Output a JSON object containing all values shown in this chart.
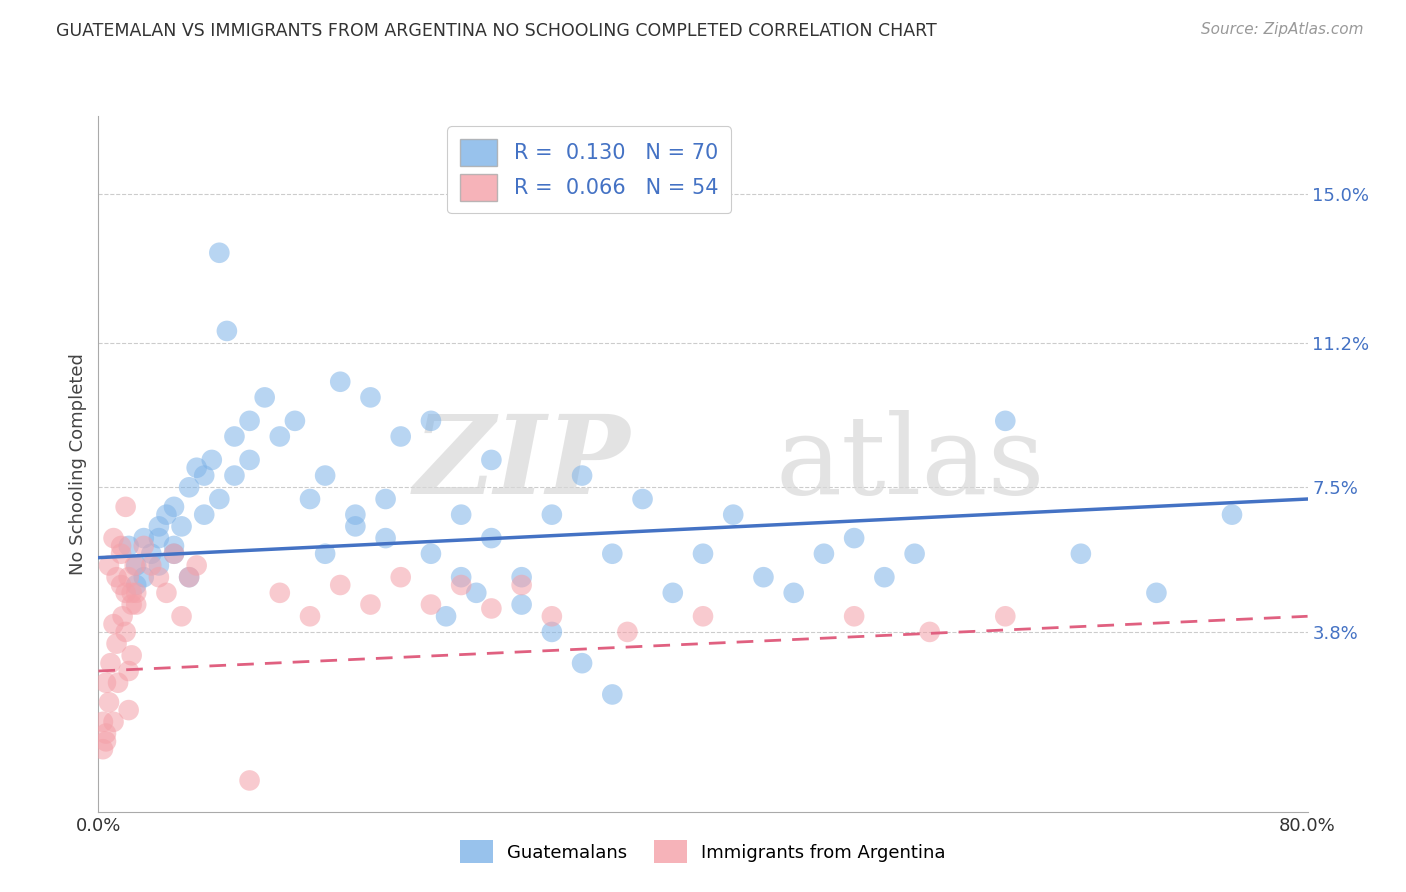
{
  "title": "GUATEMALAN VS IMMIGRANTS FROM ARGENTINA NO SCHOOLING COMPLETED CORRELATION CHART",
  "source": "Source: ZipAtlas.com",
  "ylabel": "No Schooling Completed",
  "x_min": 0.0,
  "x_max": 0.8,
  "y_min": -0.008,
  "y_max": 0.17,
  "y_ticks": [
    0.038,
    0.075,
    0.112,
    0.15
  ],
  "y_tick_labels": [
    "3.8%",
    "7.5%",
    "11.2%",
    "15.0%"
  ],
  "x_ticks": [
    0.0,
    0.8
  ],
  "x_tick_labels": [
    "0.0%",
    "80.0%"
  ],
  "legend1_label": "R =  0.130   N = 70",
  "legend2_label": "R =  0.066   N = 54",
  "legend_bottom1": "Guatemalans",
  "legend_bottom2": "Immigrants from Argentina",
  "blue_color": "#7EB3E8",
  "pink_color": "#F4A0A8",
  "blue_line_color": "#4472C4",
  "pink_line_color": "#E06080",
  "blue_line_y_start": 0.057,
  "blue_line_y_end": 0.072,
  "pink_line_y_start": 0.028,
  "pink_line_y_end": 0.042,
  "background_color": "#ffffff",
  "grid_color": "#cccccc",
  "blue_scatter_x": [
    0.02,
    0.025,
    0.03,
    0.035,
    0.04,
    0.04,
    0.045,
    0.05,
    0.05,
    0.055,
    0.06,
    0.065,
    0.07,
    0.075,
    0.08,
    0.085,
    0.09,
    0.1,
    0.1,
    0.11,
    0.12,
    0.13,
    0.14,
    0.15,
    0.16,
    0.17,
    0.18,
    0.19,
    0.2,
    0.22,
    0.24,
    0.26,
    0.28,
    0.3,
    0.32,
    0.34,
    0.36,
    0.38,
    0.4,
    0.42,
    0.44,
    0.46,
    0.48,
    0.5,
    0.52,
    0.54,
    0.22,
    0.24,
    0.26,
    0.28,
    0.3,
    0.32,
    0.34,
    0.23,
    0.25,
    0.15,
    0.17,
    0.19,
    0.6,
    0.65,
    0.7,
    0.75,
    0.025,
    0.03,
    0.04,
    0.05,
    0.06,
    0.07,
    0.08,
    0.09
  ],
  "blue_scatter_y": [
    0.06,
    0.055,
    0.062,
    0.058,
    0.065,
    0.055,
    0.068,
    0.07,
    0.06,
    0.065,
    0.075,
    0.08,
    0.078,
    0.082,
    0.135,
    0.115,
    0.088,
    0.092,
    0.082,
    0.098,
    0.088,
    0.092,
    0.072,
    0.078,
    0.102,
    0.068,
    0.098,
    0.072,
    0.088,
    0.092,
    0.068,
    0.082,
    0.052,
    0.068,
    0.078,
    0.058,
    0.072,
    0.048,
    0.058,
    0.068,
    0.052,
    0.048,
    0.058,
    0.062,
    0.052,
    0.058,
    0.058,
    0.052,
    0.062,
    0.045,
    0.038,
    0.03,
    0.022,
    0.042,
    0.048,
    0.058,
    0.065,
    0.062,
    0.092,
    0.058,
    0.048,
    0.068,
    0.05,
    0.052,
    0.062,
    0.058,
    0.052,
    0.068,
    0.072,
    0.078
  ],
  "pink_scatter_x": [
    0.003,
    0.005,
    0.005,
    0.007,
    0.008,
    0.01,
    0.01,
    0.012,
    0.013,
    0.015,
    0.015,
    0.016,
    0.018,
    0.018,
    0.02,
    0.02,
    0.022,
    0.022,
    0.024,
    0.025,
    0.003,
    0.005,
    0.007,
    0.01,
    0.012,
    0.015,
    0.018,
    0.02,
    0.022,
    0.025,
    0.03,
    0.035,
    0.04,
    0.045,
    0.05,
    0.055,
    0.06,
    0.065,
    0.12,
    0.14,
    0.16,
    0.18,
    0.2,
    0.22,
    0.24,
    0.26,
    0.28,
    0.3,
    0.35,
    0.4,
    0.5,
    0.55,
    0.6,
    0.1
  ],
  "pink_scatter_y": [
    0.015,
    0.025,
    0.01,
    0.02,
    0.03,
    0.04,
    0.015,
    0.035,
    0.025,
    0.05,
    0.06,
    0.042,
    0.038,
    0.07,
    0.028,
    0.018,
    0.045,
    0.032,
    0.055,
    0.048,
    0.008,
    0.012,
    0.055,
    0.062,
    0.052,
    0.058,
    0.048,
    0.052,
    0.048,
    0.045,
    0.06,
    0.055,
    0.052,
    0.048,
    0.058,
    0.042,
    0.052,
    0.055,
    0.048,
    0.042,
    0.05,
    0.045,
    0.052,
    0.045,
    0.05,
    0.044,
    0.05,
    0.042,
    0.038,
    0.042,
    0.042,
    0.038,
    0.042,
    0.0
  ]
}
